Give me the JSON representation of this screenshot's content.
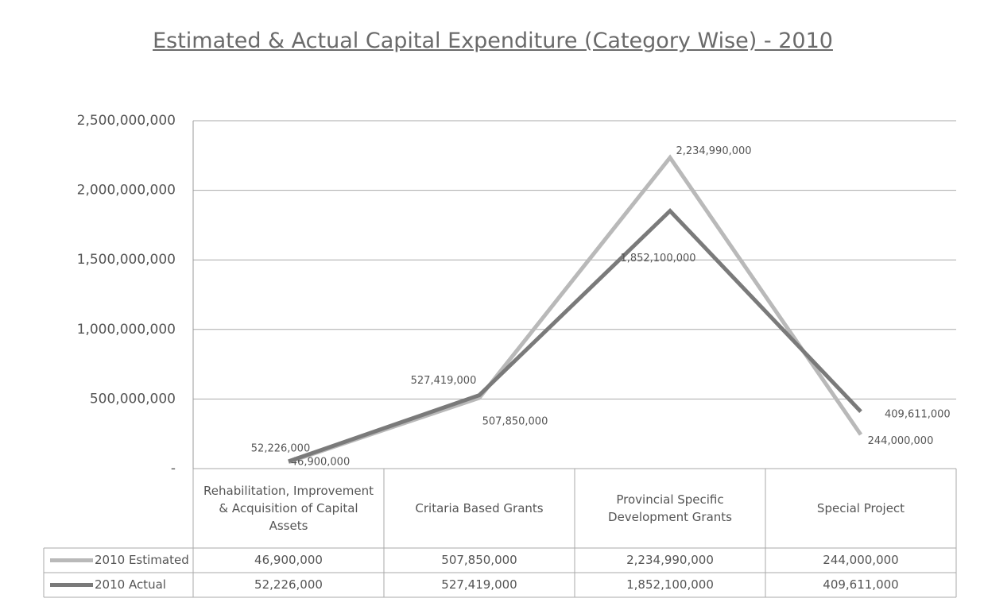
{
  "chart_data": {
    "type": "line",
    "title": "Estimated & Actual Capital Expenditure (Category Wise) - 2010",
    "categories": [
      "Rehabilitation, Improvement & Acquisition of Capital Assets",
      "Critaria Based Grants",
      "Provincial Specific Development Grants",
      "Special Project"
    ],
    "series": [
      {
        "name": "2010 Estimated",
        "color": "#b9b9b9",
        "values": [
          46900000,
          507850000,
          2234990000,
          244000000
        ],
        "value_labels": [
          "46,900,000",
          "507,850,000",
          "2,234,990,000",
          "244,000,000"
        ]
      },
      {
        "name": "2010 Actual",
        "color": "#7a7a7a",
        "values": [
          52226000,
          527419000,
          1852100000,
          409611000
        ],
        "value_labels": [
          "52,226,000",
          "527,419,000",
          "1,852,100,000",
          "409,611,000"
        ]
      }
    ],
    "ylim": [
      0,
      2500000000
    ],
    "yticks": [
      {
        "value": 0,
        "label": "-"
      },
      {
        "value": 500000000,
        "label": "500,000,000"
      },
      {
        "value": 1000000000,
        "label": "1,000,000,000"
      },
      {
        "value": 1500000000,
        "label": "1,500,000,000"
      },
      {
        "value": 2000000000,
        "label": "2,000,000,000"
      },
      {
        "value": 2500000000,
        "label": "2,500,000,000"
      }
    ],
    "grid": true,
    "data_table": true
  }
}
